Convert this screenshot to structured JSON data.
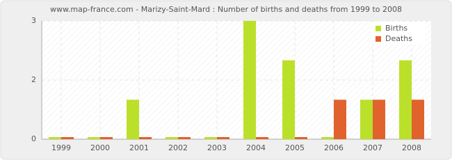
{
  "chart_data": {
    "type": "bar",
    "title": "www.map-france.com - Marizy-Saint-Mard : Number of births and deaths from 1999 to 2008",
    "categories": [
      "1999",
      "2000",
      "2001",
      "2002",
      "2003",
      "2004",
      "2005",
      "2006",
      "2007",
      "2008"
    ],
    "series": [
      {
        "name": "Births",
        "color": "#bbe02a",
        "values": [
          0,
          0,
          1,
          0,
          0,
          3,
          2,
          0,
          1,
          2
        ]
      },
      {
        "name": "Deaths",
        "color": "#e0622c",
        "values": [
          0,
          0,
          0,
          0,
          0,
          0,
          0,
          1,
          1,
          1
        ]
      }
    ],
    "ylim": [
      0,
      3
    ],
    "yticks": [
      0,
      {
        "value": 1.5,
        "label": "2"
      },
      3
    ],
    "grid": true,
    "legend": "top-right"
  }
}
